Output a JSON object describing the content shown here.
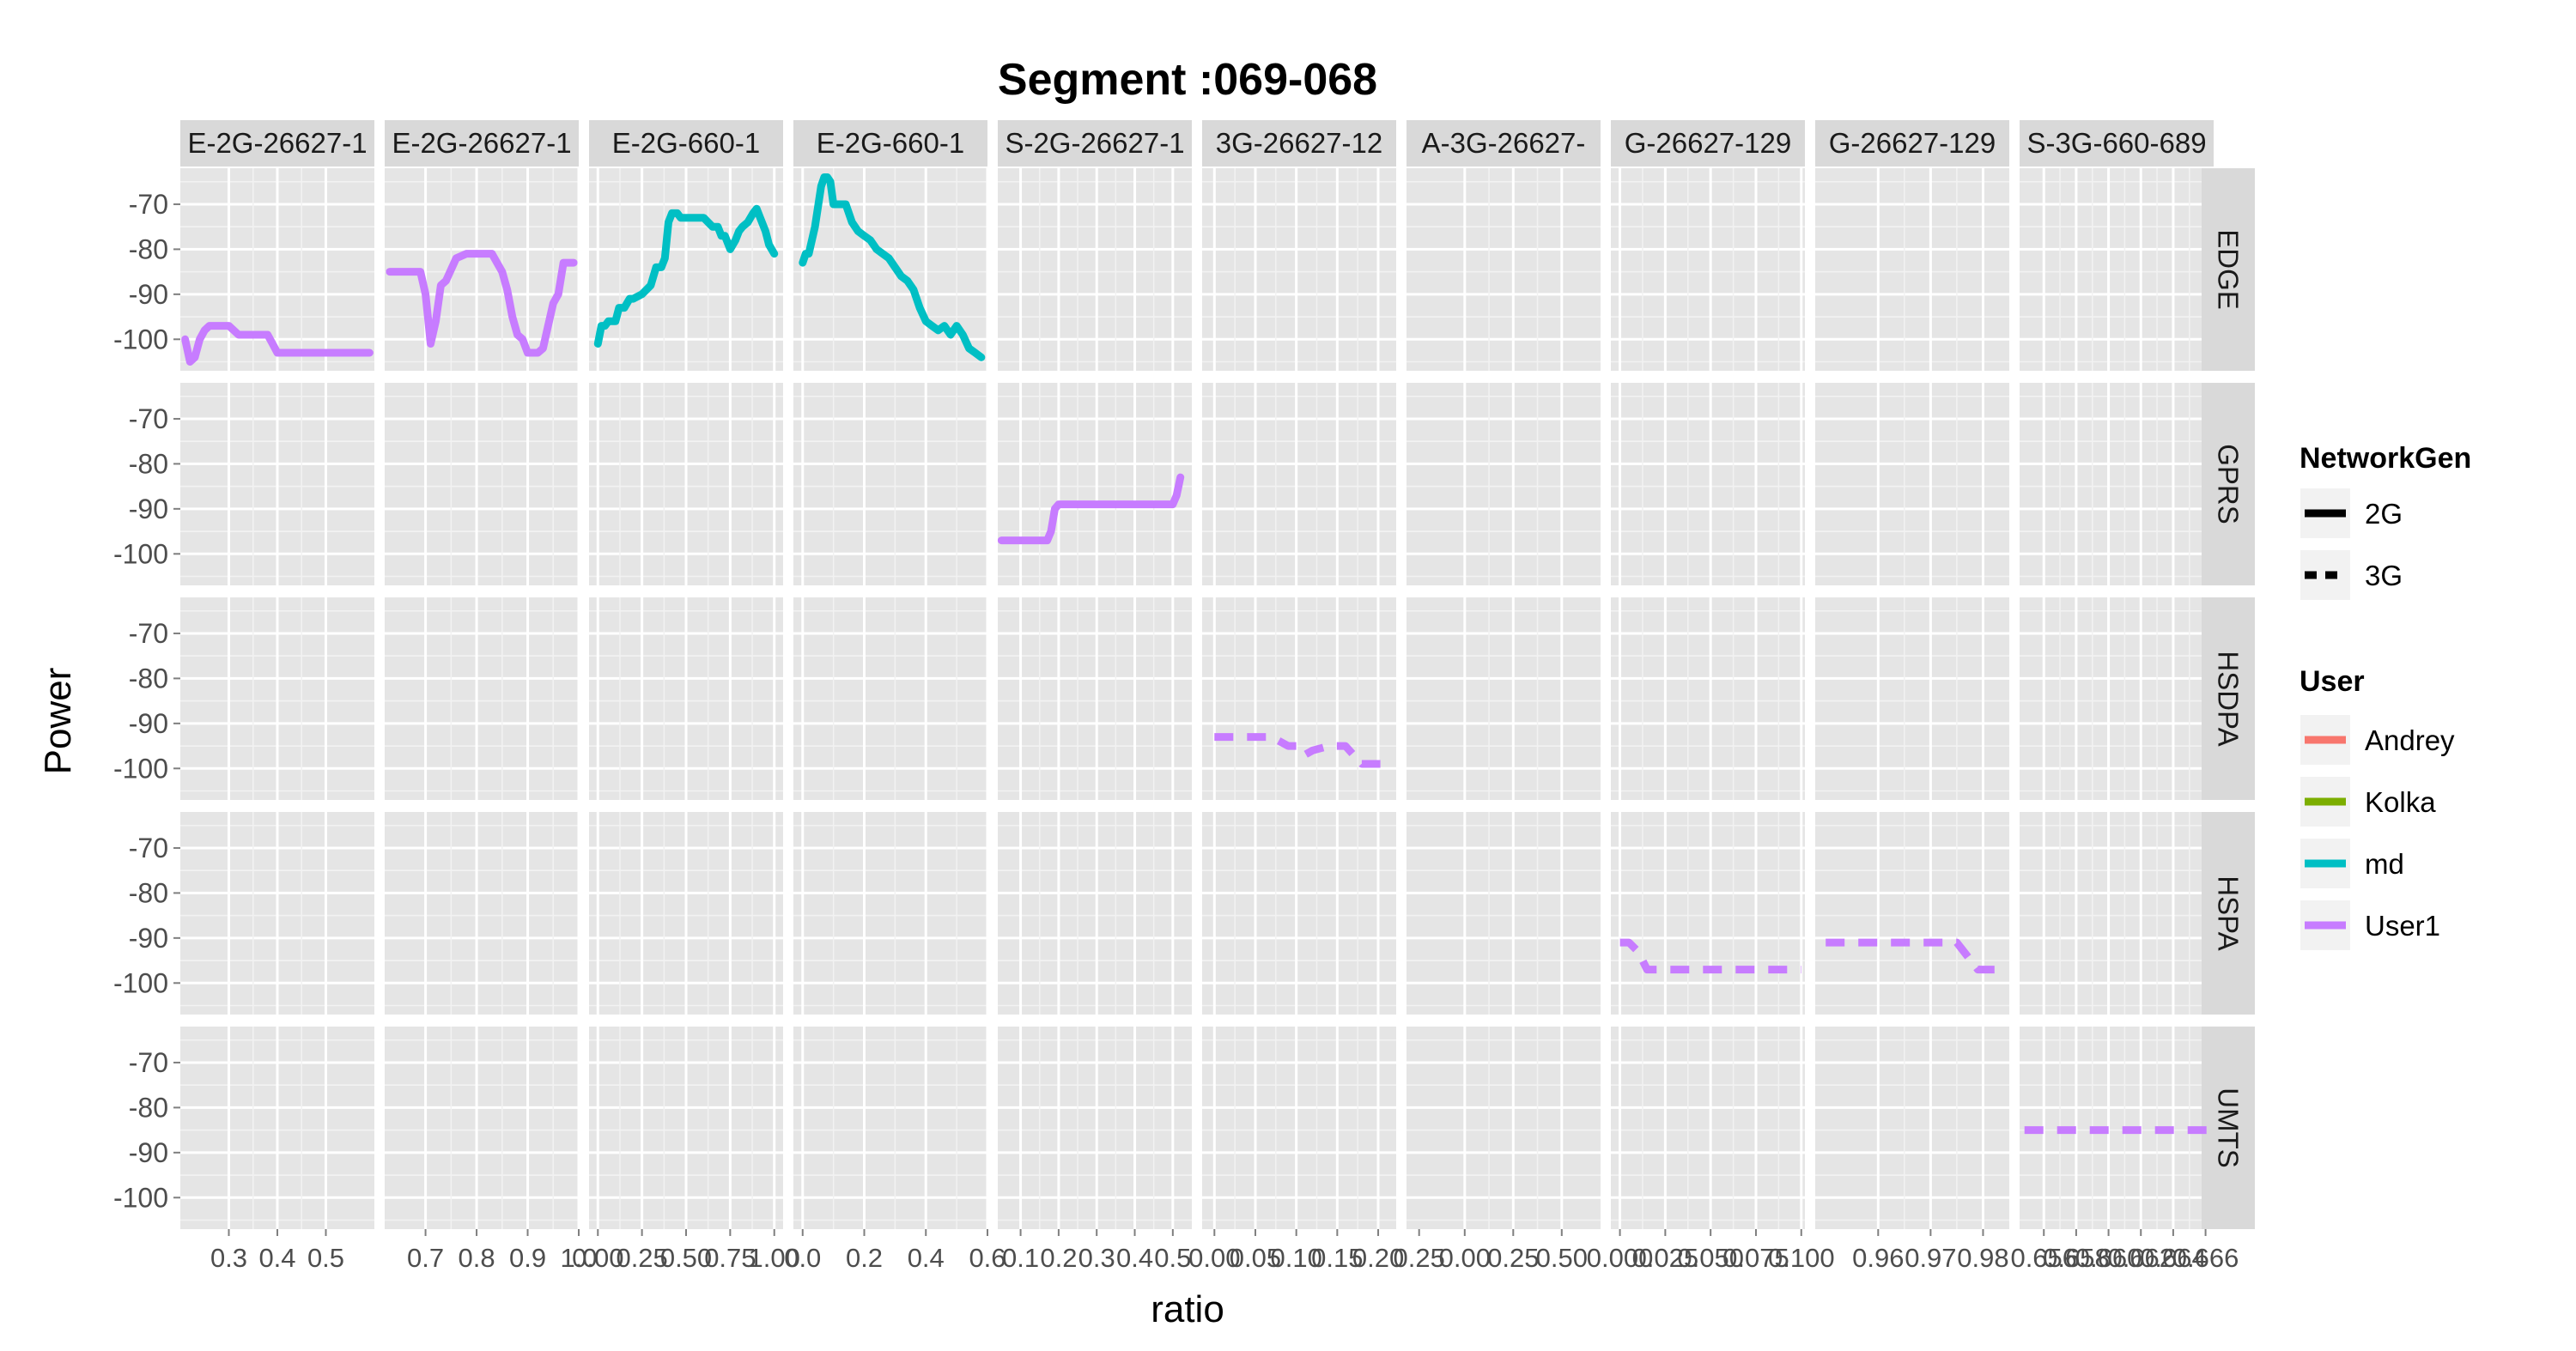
{
  "chart_data": {
    "type": "line",
    "title": "Segment :069-068",
    "xlabel": "ratio",
    "ylabel": "Power",
    "y_ticks": [
      "-70",
      "-80",
      "-90",
      "-100"
    ],
    "y_values": [
      -70,
      -80,
      -90,
      -100
    ],
    "ylim": [
      -107,
      -62
    ],
    "columns": [
      {
        "label": "E-2G-26627-1",
        "ticks": [
          "0.3",
          "0.4",
          "0.5"
        ],
        "xlim": [
          0.2,
          0.6
        ]
      },
      {
        "label": "E-2G-26627-1",
        "ticks": [
          "0.7",
          "0.8",
          "0.9",
          "1.0"
        ],
        "xlim": [
          0.62,
          1.0
        ]
      },
      {
        "label": "E-2G-660-1",
        "ticks": [
          "0.00",
          "0.25",
          "0.50",
          "0.75",
          "1.00"
        ],
        "xlim": [
          -0.05,
          1.05
        ]
      },
      {
        "label": "E-2G-660-1",
        "ticks": [
          "0.0",
          "0.2",
          "0.4",
          "0.6"
        ],
        "xlim": [
          -0.03,
          0.6
        ]
      },
      {
        "label": "S-2G-26627-1",
        "ticks": [
          "0.1",
          "0.2",
          "0.3",
          "0.4",
          "0.5"
        ],
        "xlim": [
          0.04,
          0.55
        ]
      },
      {
        "label": "3G-26627-12",
        "ticks": [
          "0.00",
          "0.05",
          "0.10",
          "0.15",
          "0.20",
          "0.25"
        ],
        "xlim": [
          -0.015,
          0.222
        ]
      },
      {
        "label": "A-3G-26627-",
        "ticks": [
          "0.00",
          "0.25",
          "0.50"
        ],
        "xlim": [
          -0.3,
          0.7
        ]
      },
      {
        "label": "G-26627-129",
        "ticks": [
          "0.000",
          "0.025",
          "0.050",
          "0.075",
          "0.100"
        ],
        "xlim": [
          -0.005,
          0.102
        ]
      },
      {
        "label": "G-26627-129",
        "ticks": [
          "0.96",
          "0.97",
          "0.98"
        ],
        "xlim": [
          0.948,
          0.985
        ]
      },
      {
        "label": "S-3G-660-689",
        "ticks": [
          "0.656",
          "0.658",
          "0.660",
          "0.662",
          "0.664",
          "0.666"
        ],
        "xlim": [
          0.6545,
          0.6665
        ]
      }
    ],
    "rows": [
      "EDGE",
      "GPRS",
      "HSDPA",
      "HSPA",
      "UMTS"
    ],
    "legend": {
      "placement": "right",
      "networkgen_title": "NetworkGen",
      "networkgen_items": [
        {
          "label": "2G",
          "dash": "solid"
        },
        {
          "label": "3G",
          "dash": "dashed"
        }
      ],
      "user_title": "User",
      "user_items": [
        {
          "label": "Andrey",
          "color": "#F8766D"
        },
        {
          "label": "Kolka",
          "color": "#7CAE00"
        },
        {
          "label": "md",
          "color": "#00BFC4"
        },
        {
          "label": "User1",
          "color": "#C77CFF"
        }
      ]
    },
    "series": [
      {
        "row": 0,
        "col": 0,
        "user": "User1",
        "networkgen": "2G",
        "x": [
          0.21,
          0.22,
          0.23,
          0.24,
          0.25,
          0.26,
          0.27,
          0.28,
          0.3,
          0.32,
          0.34,
          0.36,
          0.38,
          0.39,
          0.4,
          0.42,
          0.5,
          0.59
        ],
        "y": [
          -100,
          -105,
          -104,
          -100,
          -98,
          -97,
          -97,
          -97,
          -97,
          -99,
          -99,
          -99,
          -99,
          -101,
          -103,
          -103,
          -103,
          -103
        ]
      },
      {
        "row": 0,
        "col": 1,
        "user": "User1",
        "networkgen": "2G",
        "x": [
          0.63,
          0.66,
          0.67,
          0.69,
          0.7,
          0.71,
          0.72,
          0.73,
          0.74,
          0.76,
          0.78,
          0.8,
          0.82,
          0.83,
          0.84,
          0.85,
          0.86,
          0.87,
          0.88,
          0.89,
          0.9,
          0.91,
          0.92,
          0.93,
          0.94,
          0.95,
          0.96,
          0.97,
          0.99
        ],
        "y": [
          -85,
          -85,
          -85,
          -85,
          -90,
          -101,
          -96,
          -88,
          -87,
          -82,
          -81,
          -81,
          -81,
          -81,
          -83,
          -85,
          -89,
          -95,
          -99,
          -100,
          -103,
          -103,
          -103,
          -102,
          -97,
          -92,
          -90,
          -83,
          -83
        ]
      },
      {
        "row": 0,
        "col": 2,
        "user": "md",
        "networkgen": "2G",
        "x": [
          0.0,
          0.02,
          0.04,
          0.06,
          0.1,
          0.12,
          0.15,
          0.18,
          0.2,
          0.25,
          0.3,
          0.33,
          0.36,
          0.38,
          0.4,
          0.42,
          0.45,
          0.47,
          0.5,
          0.55,
          0.6,
          0.65,
          0.68,
          0.7,
          0.72,
          0.75,
          0.78,
          0.8,
          0.82,
          0.85,
          0.88,
          0.9,
          0.92,
          0.95,
          0.97,
          1.0
        ],
        "y": [
          -101,
          -97,
          -97,
          -96,
          -96,
          -93,
          -93,
          -91,
          -91,
          -90,
          -88,
          -84,
          -84,
          -82,
          -74,
          -72,
          -72,
          -73,
          -73,
          -73,
          -73,
          -75,
          -75,
          -77,
          -77,
          -80,
          -78,
          -76,
          -75,
          -74,
          -72,
          -71,
          -73,
          -76,
          -79,
          -81
        ]
      },
      {
        "row": 0,
        "col": 3,
        "user": "md",
        "networkgen": "2G",
        "x": [
          0.0,
          0.01,
          0.02,
          0.04,
          0.06,
          0.07,
          0.08,
          0.09,
          0.1,
          0.12,
          0.14,
          0.16,
          0.18,
          0.2,
          0.22,
          0.24,
          0.26,
          0.28,
          0.3,
          0.32,
          0.34,
          0.36,
          0.38,
          0.4,
          0.42,
          0.44,
          0.46,
          0.48,
          0.5,
          0.52,
          0.54,
          0.56,
          0.58
        ],
        "y": [
          -83,
          -81,
          -81,
          -75,
          -66,
          -64,
          -64,
          -65,
          -70,
          -70,
          -70,
          -74,
          -76,
          -77,
          -78,
          -80,
          -81,
          -82,
          -84,
          -86,
          -87,
          -89,
          -93,
          -96,
          -97,
          -98,
          -97,
          -99,
          -97,
          -99,
          -102,
          -103,
          -104
        ]
      },
      {
        "row": 1,
        "col": 4,
        "user": "User1",
        "networkgen": "2G",
        "x": [
          0.05,
          0.1,
          0.15,
          0.17,
          0.18,
          0.19,
          0.2,
          0.3,
          0.4,
          0.5,
          0.51,
          0.52
        ],
        "y": [
          -97,
          -97,
          -97,
          -97,
          -95,
          -90,
          -89,
          -89,
          -89,
          -89,
          -87,
          -83
        ]
      },
      {
        "row": 2,
        "col": 5,
        "user": "User1",
        "networkgen": "3G",
        "x": [
          0.0,
          0.02,
          0.04,
          0.06,
          0.07,
          0.09,
          0.1,
          0.11,
          0.12,
          0.14,
          0.15,
          0.16,
          0.17,
          0.18,
          0.19,
          0.2,
          0.21
        ],
        "y": [
          -93,
          -93,
          -93,
          -93,
          -93,
          -95,
          -95,
          -97,
          -96,
          -95,
          -95,
          -95,
          -97,
          -99,
          -99,
          -99,
          -99
        ]
      },
      {
        "row": 3,
        "col": 7,
        "user": "User1",
        "networkgen": "3G",
        "x": [
          0.0,
          0.005,
          0.01,
          0.015,
          0.03,
          0.06,
          0.09,
          0.1
        ],
        "y": [
          -91,
          -91,
          -93,
          -97,
          -97,
          -97,
          -97,
          -97
        ]
      },
      {
        "row": 3,
        "col": 8,
        "user": "User1",
        "networkgen": "3G",
        "x": [
          0.95,
          0.96,
          0.97,
          0.975,
          0.977,
          0.979,
          0.981,
          0.983
        ],
        "y": [
          -91,
          -91,
          -91,
          -91,
          -94,
          -97,
          -97,
          -97
        ]
      },
      {
        "row": 4,
        "col": 9,
        "user": "User1",
        "networkgen": "3G",
        "x": [
          0.6548,
          0.66,
          0.6663
        ],
        "y": [
          -85,
          -85,
          -85
        ]
      }
    ]
  }
}
